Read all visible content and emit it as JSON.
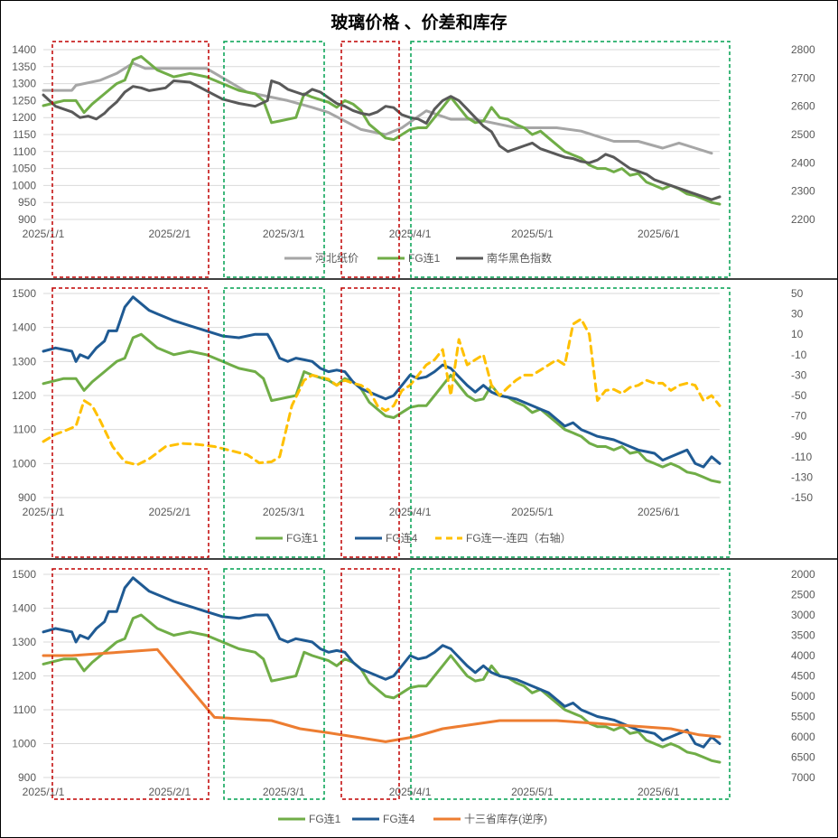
{
  "title": "玻璃价格 、价差和库存",
  "colors": {
    "hebei": "#a6a6a6",
    "fg1": "#70ad47",
    "nanhua": "#595959",
    "fg4": "#1f5a93",
    "spread": "#ffc000",
    "inventory": "#ed7d31",
    "red_box": "#c00000",
    "green_box": "#00a050"
  },
  "x_ticks": [
    "2025/1/1",
    "2025/2/1",
    "2025/3/1",
    "2025/4/1",
    "2025/5/1",
    "2025/6/1"
  ],
  "chart_data": [
    {
      "type": "line",
      "name": "panel1",
      "x_unit": "days since 2025/1/1",
      "xlim": [
        0,
        166
      ],
      "y_left": {
        "min": 900,
        "max": 1400,
        "step": 50
      },
      "y_right": {
        "min": 2200,
        "max": 2800,
        "step": 100
      },
      "legend": [
        "河北纸价",
        "FG连1",
        "南华黑色指数"
      ],
      "series": [
        {
          "name": "河北纸价",
          "axis": "left",
          "x": [
            0,
            7,
            8,
            14,
            18,
            22,
            25,
            30,
            35,
            40,
            50,
            56,
            60,
            66,
            70,
            78,
            84,
            88,
            94,
            100,
            106,
            112,
            116,
            120,
            126,
            132,
            136,
            140,
            146,
            152,
            156,
            160,
            164
          ],
          "y": [
            1280,
            1280,
            1295,
            1310,
            1330,
            1360,
            1345,
            1345,
            1345,
            1345,
            1275,
            1260,
            1250,
            1230,
            1215,
            1165,
            1150,
            1170,
            1220,
            1195,
            1195,
            1180,
            1170,
            1170,
            1170,
            1160,
            1145,
            1130,
            1130,
            1110,
            1125,
            1110,
            1095
          ]
        },
        {
          "name": "FG连1",
          "axis": "left",
          "x": [
            0,
            5,
            8,
            10,
            12,
            15,
            18,
            20,
            22,
            24,
            28,
            32,
            36,
            40,
            44,
            48,
            52,
            54,
            56,
            58,
            62,
            64,
            66,
            70,
            72,
            74,
            76,
            78,
            80,
            82,
            84,
            86,
            88,
            90,
            92,
            94,
            96,
            98,
            100,
            102,
            104,
            106,
            108,
            110,
            112,
            114,
            116,
            118,
            120,
            122,
            124,
            126,
            128,
            130,
            132,
            134,
            136,
            138,
            140,
            142,
            144,
            146,
            148,
            150,
            152,
            154,
            156,
            158,
            160,
            162,
            164,
            166
          ],
          "y": [
            1235,
            1250,
            1250,
            1215,
            1240,
            1270,
            1300,
            1310,
            1370,
            1380,
            1340,
            1320,
            1330,
            1320,
            1300,
            1280,
            1270,
            1250,
            1185,
            1190,
            1200,
            1270,
            1260,
            1245,
            1230,
            1250,
            1240,
            1220,
            1180,
            1160,
            1140,
            1135,
            1150,
            1165,
            1170,
            1170,
            1200,
            1230,
            1260,
            1230,
            1200,
            1185,
            1190,
            1230,
            1200,
            1195,
            1180,
            1170,
            1150,
            1160,
            1140,
            1120,
            1100,
            1090,
            1080,
            1060,
            1050,
            1050,
            1040,
            1050,
            1030,
            1035,
            1010,
            1000,
            990,
            1000,
            990,
            975,
            970,
            960,
            950,
            945
          ]
        },
        {
          "name": "南华黑色指数",
          "axis": "right",
          "x": [
            0,
            3,
            5,
            7,
            8,
            9,
            11,
            13,
            15,
            16,
            18,
            20,
            22,
            24,
            26,
            28,
            30,
            32,
            36,
            40,
            44,
            48,
            52,
            55,
            56,
            58,
            60,
            62,
            64,
            66,
            68,
            70,
            72,
            74,
            76,
            78,
            80,
            82,
            84,
            86,
            88,
            90,
            92,
            94,
            96,
            98,
            100,
            102,
            104,
            106,
            108,
            110,
            112,
            114,
            116,
            118,
            120,
            122,
            124,
            126,
            128,
            130,
            132,
            134,
            136,
            138,
            140,
            142,
            144,
            146,
            148,
            150,
            152,
            154,
            156,
            158,
            160,
            162,
            164,
            166
          ],
          "y": [
            2640,
            2600,
            2590,
            2580,
            2570,
            2560,
            2565,
            2555,
            2575,
            2590,
            2615,
            2650,
            2670,
            2665,
            2655,
            2660,
            2665,
            2690,
            2685,
            2655,
            2625,
            2610,
            2600,
            2620,
            2690,
            2680,
            2660,
            2650,
            2640,
            2660,
            2650,
            2630,
            2610,
            2600,
            2585,
            2575,
            2570,
            2580,
            2600,
            2595,
            2570,
            2560,
            2555,
            2540,
            2590,
            2620,
            2635,
            2620,
            2590,
            2560,
            2530,
            2510,
            2460,
            2440,
            2450,
            2460,
            2470,
            2450,
            2440,
            2430,
            2420,
            2415,
            2405,
            2400,
            2410,
            2430,
            2420,
            2400,
            2380,
            2370,
            2360,
            2340,
            2330,
            2320,
            2310,
            2300,
            2290,
            2280,
            2270,
            2280
          ]
        }
      ]
    },
    {
      "type": "line",
      "name": "panel2",
      "x_unit": "days since 2025/1/1",
      "xlim": [
        0,
        166
      ],
      "y_left": {
        "min": 900,
        "max": 1500,
        "step": 100
      },
      "y_right": {
        "min": -150,
        "max": 50,
        "step": 20
      },
      "legend": [
        "FG连1",
        "FG连4",
        "FG连一-连四（右轴）"
      ],
      "series": [
        {
          "name": "FG连1",
          "axis": "left",
          "ref": "panel1.FG连1"
        },
        {
          "name": "FG连4",
          "axis": "left",
          "x": [
            0,
            3,
            5,
            7,
            8,
            9,
            11,
            13,
            15,
            16,
            18,
            20,
            22,
            24,
            26,
            28,
            30,
            32,
            36,
            40,
            44,
            48,
            52,
            55,
            56,
            58,
            60,
            62,
            64,
            66,
            68,
            70,
            72,
            74,
            76,
            78,
            80,
            82,
            84,
            86,
            88,
            90,
            92,
            94,
            96,
            98,
            100,
            102,
            104,
            106,
            108,
            110,
            112,
            114,
            116,
            118,
            120,
            122,
            124,
            126,
            128,
            130,
            132,
            134,
            136,
            138,
            140,
            142,
            144,
            146,
            148,
            150,
            152,
            154,
            156,
            158,
            160,
            162,
            164,
            166
          ],
          "y": [
            1330,
            1340,
            1335,
            1330,
            1300,
            1320,
            1310,
            1340,
            1360,
            1390,
            1390,
            1460,
            1490,
            1470,
            1450,
            1440,
            1430,
            1420,
            1405,
            1390,
            1375,
            1370,
            1380,
            1380,
            1360,
            1310,
            1300,
            1310,
            1305,
            1300,
            1280,
            1270,
            1275,
            1270,
            1240,
            1220,
            1210,
            1200,
            1190,
            1200,
            1230,
            1260,
            1250,
            1255,
            1270,
            1290,
            1280,
            1255,
            1230,
            1210,
            1230,
            1210,
            1200,
            1195,
            1190,
            1180,
            1170,
            1160,
            1150,
            1130,
            1110,
            1120,
            1100,
            1090,
            1080,
            1075,
            1070,
            1060,
            1050,
            1040,
            1035,
            1030,
            1010,
            1020,
            1030,
            1040,
            1000,
            990,
            1020,
            1000
          ]
        },
        {
          "name": "FG连一-连四（右轴）",
          "axis": "right",
          "x": [
            0,
            3,
            5,
            8,
            10,
            12,
            14,
            17,
            20,
            23,
            26,
            30,
            34,
            38,
            42,
            46,
            50,
            53,
            56,
            58,
            61,
            64,
            66,
            68,
            70,
            72,
            74,
            76,
            78,
            80,
            82,
            84,
            86,
            88,
            90,
            92,
            94,
            96,
            98,
            100,
            102,
            104,
            106,
            108,
            110,
            112,
            114,
            116,
            118,
            120,
            122,
            124,
            126,
            128,
            130,
            132,
            134,
            136,
            138,
            140,
            142,
            144,
            146,
            148,
            150,
            152,
            154,
            156,
            158,
            160,
            162,
            164,
            166
          ],
          "y": [
            -95,
            -88,
            -85,
            -80,
            -55,
            -60,
            -75,
            -100,
            -115,
            -118,
            -112,
            -100,
            -97,
            -98,
            -100,
            -104,
            -108,
            -116,
            -115,
            -110,
            -60,
            -35,
            -30,
            -32,
            -34,
            -40,
            -35,
            -38,
            -40,
            -45,
            -60,
            -65,
            -60,
            -45,
            -40,
            -30,
            -20,
            -15,
            -5,
            -50,
            5,
            -20,
            -15,
            -10,
            -40,
            -50,
            -42,
            -35,
            -30,
            -30,
            -25,
            -20,
            -15,
            -20,
            20,
            25,
            10,
            -55,
            -45,
            -44,
            -48,
            -42,
            -40,
            -35,
            -38,
            -38,
            -45,
            -40,
            -38,
            -40,
            -55,
            -50,
            -60
          ]
        }
      ]
    },
    {
      "type": "line",
      "name": "panel3",
      "x_unit": "days since 2025/1/1",
      "xlim": [
        0,
        166
      ],
      "y_left": {
        "min": 900,
        "max": 1500,
        "step": 100
      },
      "y_right": {
        "min": 2000,
        "max": 7000,
        "step": 500,
        "reversed": true
      },
      "legend": [
        "FG连1",
        "FG连4",
        "十三省库存(逆序)"
      ],
      "series": [
        {
          "name": "FG连1",
          "axis": "left",
          "ref": "panel1.FG连1"
        },
        {
          "name": "FG连4",
          "axis": "left",
          "ref": "panel2.FG连4"
        },
        {
          "name": "十三省库存(逆序)",
          "axis": "right",
          "x": [
            0,
            7,
            14,
            21,
            28,
            42,
            56,
            63,
            70,
            84,
            91,
            98,
            105,
            112,
            119,
            126,
            133,
            140,
            147,
            154,
            161,
            166
          ],
          "y": [
            4000,
            4000,
            3950,
            3900,
            3850,
            5520,
            5600,
            5800,
            5900,
            6120,
            6000,
            5800,
            5700,
            5600,
            5600,
            5600,
            5650,
            5700,
            5750,
            5800,
            5950,
            6000
          ]
        }
      ]
    }
  ]
}
